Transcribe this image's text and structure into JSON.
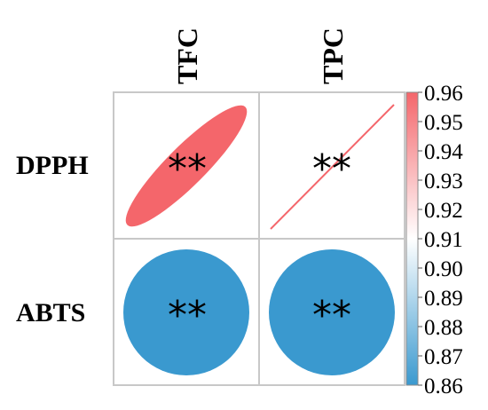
{
  "chart_data": {
    "type": "heatmap",
    "subtype": "correlation-matrix",
    "columns": [
      "TFC",
      "TPC"
    ],
    "rows": [
      "DPPH",
      "ABTS"
    ],
    "cells": [
      {
        "row": "DPPH",
        "col": "TFC",
        "value": 0.96,
        "shape": "ellipse",
        "significance": "**"
      },
      {
        "row": "DPPH",
        "col": "TPC",
        "value": 0.999,
        "shape": "line",
        "significance": "**"
      },
      {
        "row": "ABTS",
        "col": "TFC",
        "value": 0.865,
        "shape": "circle",
        "significance": "**"
      },
      {
        "row": "ABTS",
        "col": "TPC",
        "value": 0.865,
        "shape": "circle",
        "significance": "**"
      }
    ],
    "colorbar": {
      "min": 0.86,
      "max": 0.96,
      "ticks": [
        "0.96",
        "0.95",
        "0.94",
        "0.93",
        "0.92",
        "0.91",
        "0.90",
        "0.89",
        "0.88",
        "0.87",
        "0.86"
      ],
      "colors": {
        "high": "#f4666b",
        "mid": "#ffffff",
        "low": "#3a99cf"
      }
    },
    "grid_color": "#c8c8c8"
  }
}
